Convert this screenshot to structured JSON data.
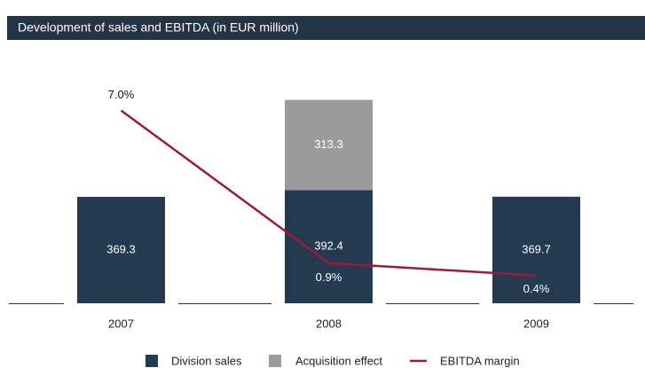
{
  "chart_data": {
    "type": "bar",
    "stacked": true,
    "title": "Development of sales and EBITDA (in EUR million)",
    "categories": [
      "2007",
      "2008",
      "2009"
    ],
    "series": [
      {
        "name": "Division sales",
        "color": "#233a51",
        "values": [
          369.3,
          392.4,
          369.7
        ]
      },
      {
        "name": "Acquisition effect",
        "color": "#9b9b9b",
        "values": [
          null,
          313.3,
          null
        ]
      },
      {
        "name": "EBITDA margin",
        "type": "line",
        "axis": "y2",
        "color": "#9b1b3a",
        "values": [
          7.0,
          0.9,
          0.4
        ],
        "value_labels": [
          "7.0%",
          "0.9%",
          "0.4%"
        ]
      }
    ],
    "ylim": [
      0,
      1000
    ],
    "y2lim": [
      0,
      10
    ]
  }
}
